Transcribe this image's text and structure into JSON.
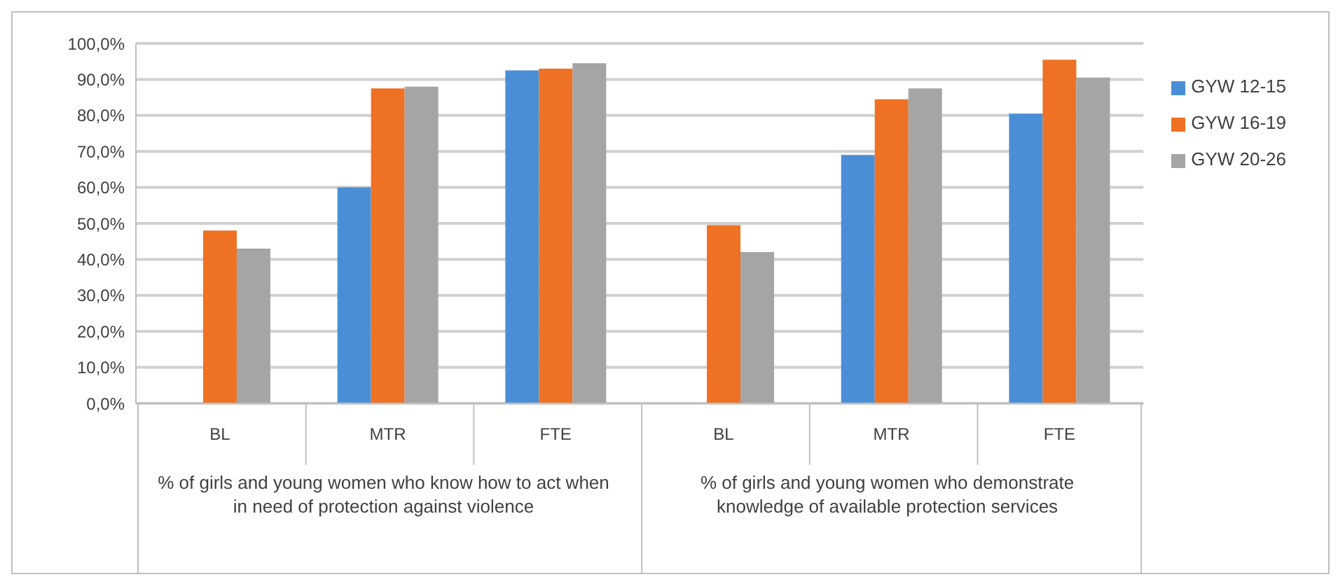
{
  "chart_data": {
    "type": "bar",
    "categories": [
      "BL",
      "MTR",
      "FTE",
      "BL",
      "MTR",
      "FTE"
    ],
    "series": [
      {
        "name": "GYW 12-15",
        "color": "#4a8fd6",
        "values": [
          null,
          60,
          92.5,
          null,
          69,
          80.5
        ]
      },
      {
        "name": "GYW 16-19",
        "color": "#ee7124",
        "values": [
          48,
          87.5,
          93,
          49.5,
          84.5,
          95.5
        ]
      },
      {
        "name": "GYW 20-26",
        "color": "#a5a5a5",
        "values": [
          43,
          88,
          94.5,
          42,
          87.5,
          90.5
        ]
      }
    ],
    "ylim": [
      0,
      100
    ],
    "yticks": [
      {
        "value": 0,
        "label": "0,0%"
      },
      {
        "value": 10,
        "label": "10,0%"
      },
      {
        "value": 20,
        "label": "20,0%"
      },
      {
        "value": 30,
        "label": "30,0%"
      },
      {
        "value": 40,
        "label": "40,0%"
      },
      {
        "value": 50,
        "label": "50,0%"
      },
      {
        "value": 60,
        "label": "60,0%"
      },
      {
        "value": 70,
        "label": "70,0%"
      },
      {
        "value": 80,
        "label": "80,0%"
      },
      {
        "value": 90,
        "label": "90,0%"
      },
      {
        "value": 100,
        "label": "100,0%"
      }
    ],
    "annotations": [
      "% of girls and young women who know how to act when in need of protection against violence",
      "% of girls and young women who demonstrate knowledge of available protection services"
    ],
    "grid": "y",
    "legend": "right"
  }
}
